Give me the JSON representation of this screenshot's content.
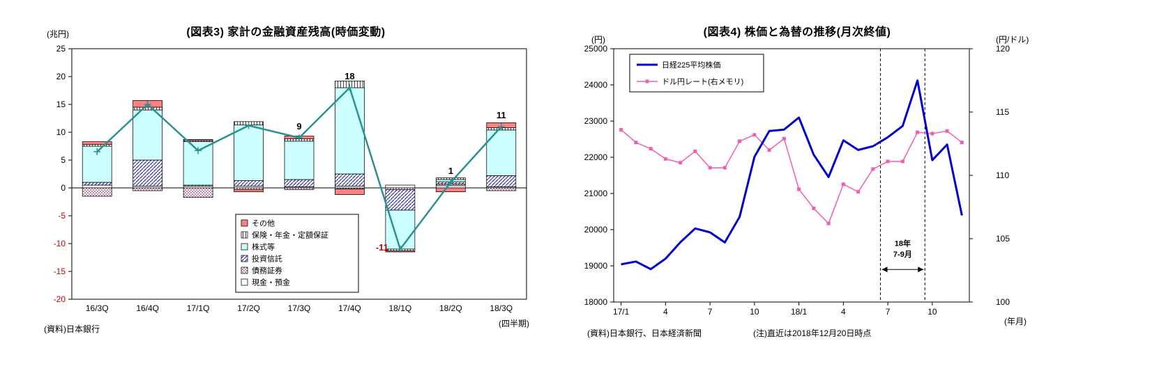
{
  "chart_data": [
    {
      "type": "bar",
      "title": "(図表3) 家計の金融資産残高(時価変動)",
      "y_unit": "(兆円)",
      "x_unit": "(四半期)",
      "source": "(資料)日本銀行",
      "ylim": [
        -20,
        25
      ],
      "ytick_step": 5,
      "negative_tick_color": "#cc0000",
      "categories": [
        "16/3Q",
        "16/4Q",
        "17/1Q",
        "17/2Q",
        "17/3Q",
        "17/4Q",
        "18/1Q",
        "18/2Q",
        "18/3Q"
      ],
      "series": [
        {
          "name": "現金・預金",
          "pattern": "plain",
          "values": [
            0.5,
            0.3,
            0.3,
            0.3,
            0.2,
            0.3,
            0.5,
            0.4,
            0.2
          ]
        },
        {
          "name": "債務証券",
          "pattern": "dots",
          "values": [
            -1.5,
            -0.5,
            -1.7,
            -0.3,
            -0.3,
            -0.2,
            -0.3,
            0.3,
            -0.5
          ]
        },
        {
          "name": "投資信託",
          "pattern": "diag",
          "values": [
            0.5,
            4.7,
            0.2,
            1.0,
            1.3,
            2.2,
            -3.7,
            0.4,
            2.0
          ]
        },
        {
          "name": "株式等",
          "pattern": "cyan",
          "values": [
            6.5,
            9.0,
            7.8,
            10.0,
            6.9,
            15.5,
            -7.0,
            0.4,
            8.2
          ]
        },
        {
          "name": "保険・年金・定額保証",
          "pattern": "vert",
          "values": [
            0.3,
            0.5,
            0.2,
            0.6,
            0.4,
            1.2,
            -0.3,
            0.3,
            0.4
          ]
        },
        {
          "name": "その他",
          "pattern": "red",
          "values": [
            0.5,
            1.2,
            0.2,
            -0.4,
            0.5,
            -1.0,
            -0.2,
            -0.7,
            0.9
          ]
        }
      ],
      "legend_order": [
        "その他",
        "保険・年金・定額保証",
        "株式等",
        "投資信託",
        "債務証券",
        "現金・預金"
      ],
      "line": {
        "name": "合計",
        "color": "#2a9090",
        "values": [
          6.5,
          15,
          6.7,
          11.2,
          9,
          18,
          -11,
          1,
          11
        ],
        "labels": [
          {
            "i": 4,
            "text": "9"
          },
          {
            "i": 5,
            "text": "18"
          },
          {
            "i": 6,
            "text": "-11",
            "color": "#cc0000",
            "below": true
          },
          {
            "i": 7,
            "text": "1"
          },
          {
            "i": 8,
            "text": "11"
          }
        ]
      }
    },
    {
      "type": "line",
      "title": "(図表4) 株価と為替の推移(月次終値)",
      "y_left_unit": "(円)",
      "y_right_unit": "(円/ドル)",
      "x_unit": "(年月)",
      "source": "(資料)日本銀行、日本経済新聞",
      "note": "(注)直近は2018年12月20日時点",
      "ylim_left": [
        18000,
        25000
      ],
      "ytick_left_step": 1000,
      "ylim_right": [
        100,
        120
      ],
      "ytick_right_step": 5,
      "n_points": 24,
      "x_labels": [
        {
          "i": 0,
          "text": "17/1"
        },
        {
          "i": 3,
          "text": "4"
        },
        {
          "i": 6,
          "text": "7"
        },
        {
          "i": 9,
          "text": "10"
        },
        {
          "i": 12,
          "text": "18/1"
        },
        {
          "i": 15,
          "text": "4"
        },
        {
          "i": 18,
          "text": "7"
        },
        {
          "i": 21,
          "text": "10"
        }
      ],
      "series": [
        {
          "name": "日経225平均株価",
          "axis": "left",
          "color": "#0000cc",
          "width": 3,
          "values": [
            19041,
            19119,
            18909,
            19197,
            19651,
            20033,
            19925,
            19646,
            20356,
            22012,
            22725,
            22765,
            23098,
            22068,
            21454,
            22468,
            22202,
            22305,
            22554,
            22865,
            24121,
            21920,
            22351,
            20393
          ]
        },
        {
          "name": "ドル円レート(右メモリ)",
          "axis": "right",
          "color": "#f25cb3",
          "width": 1.5,
          "marker": "square",
          "values": [
            113.6,
            112.6,
            112.1,
            111.3,
            111.0,
            111.9,
            110.6,
            110.6,
            112.7,
            113.2,
            112.0,
            112.9,
            108.9,
            107.4,
            106.2,
            109.3,
            108.7,
            110.5,
            111.1,
            111.1,
            113.4,
            113.3,
            113.5,
            112.6
          ]
        }
      ],
      "annotation": {
        "label_line1": "18年",
        "label_line2": "7-9月",
        "x_from": 18,
        "x_to": 21
      }
    }
  ]
}
